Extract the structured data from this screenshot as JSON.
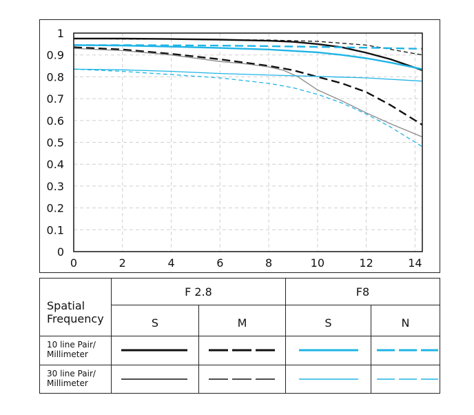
{
  "chart_data": {
    "type": "line",
    "title": "",
    "xlabel": "",
    "ylabel": "",
    "xlim": [
      0,
      14.3
    ],
    "ylim": [
      0,
      1
    ],
    "x_ticks": [
      0,
      2,
      4,
      6,
      8,
      10,
      12,
      14
    ],
    "x_tick_labels": [
      "0",
      "2",
      "4",
      "6",
      "8",
      "10",
      "12",
      "14"
    ],
    "y_ticks": [
      0,
      0.1,
      0.2,
      0.3,
      0.4,
      0.5,
      0.6,
      0.7,
      0.8,
      0.9,
      1
    ],
    "y_tick_labels": [
      "0",
      "0.1",
      "0.2",
      "0.3",
      "0.4",
      "0.5",
      "0.6",
      "0.7",
      "0.8",
      "0.9",
      "1"
    ],
    "grid": true,
    "series": [
      {
        "name": "F 2.8 S 10 line Pair/Millimeter",
        "color": "#111111",
        "dash": "solid",
        "weight": "thick",
        "x": [
          0,
          2,
          4,
          6,
          8,
          9,
          10,
          11,
          12,
          13,
          14.3
        ],
        "y": [
          0.975,
          0.975,
          0.973,
          0.97,
          0.965,
          0.96,
          0.95,
          0.935,
          0.91,
          0.88,
          0.83
        ]
      },
      {
        "name": "F 2.8 M 10 line Pair/Millimeter",
        "color": "#111111",
        "dash": "dashed",
        "weight": "thick",
        "x": [
          0,
          2,
          4,
          6,
          7,
          8,
          9,
          10,
          11,
          12,
          13,
          14.3
        ],
        "y": [
          0.935,
          0.925,
          0.905,
          0.88,
          0.865,
          0.85,
          0.83,
          0.8,
          0.77,
          0.73,
          0.67,
          0.58
        ]
      },
      {
        "name": "F 2.8 S 30 line Pair/Millimeter",
        "color": "#888888",
        "dash": "solid",
        "weight": "thin",
        "x": [
          0,
          2,
          4,
          6,
          7,
          8,
          8.6,
          9.2,
          10,
          11,
          12,
          13,
          14.3
        ],
        "y": [
          0.93,
          0.92,
          0.9,
          0.87,
          0.86,
          0.845,
          0.83,
          0.8,
          0.74,
          0.69,
          0.635,
          0.585,
          0.525
        ]
      },
      {
        "name": "F 2.8 M 30 line Pair/Millimeter",
        "color": "#111111",
        "dash": "dashed",
        "weight": "thin",
        "x": [
          0,
          2,
          4,
          6,
          8,
          10,
          12,
          14.3
        ],
        "y": [
          0.975,
          0.973,
          0.972,
          0.97,
          0.968,
          0.962,
          0.945,
          0.9
        ]
      },
      {
        "name": "F8 S 10 line Pair/Millimeter",
        "color": "#1fb4e6",
        "dash": "solid",
        "weight": "thick",
        "x": [
          0,
          2,
          4,
          6,
          8,
          10,
          11,
          12,
          13,
          14.3
        ],
        "y": [
          0.945,
          0.943,
          0.938,
          0.932,
          0.925,
          0.912,
          0.9,
          0.885,
          0.865,
          0.835
        ]
      },
      {
        "name": "F8 N 10 line Pair/Millimeter",
        "color": "#1fb4e6",
        "dash": "dashed",
        "weight": "thick",
        "x": [
          0,
          2,
          4,
          6,
          8,
          10,
          12,
          14.3
        ],
        "y": [
          0.945,
          0.945,
          0.944,
          0.943,
          0.94,
          0.937,
          0.933,
          0.928
        ]
      },
      {
        "name": "F8 S 30 line Pair/Millimeter",
        "color": "#1fb4e6",
        "dash": "solid",
        "weight": "thin",
        "x": [
          0,
          2,
          4,
          6,
          8,
          10,
          12,
          14.3
        ],
        "y": [
          0.835,
          0.832,
          0.825,
          0.815,
          0.808,
          0.802,
          0.795,
          0.78
        ]
      },
      {
        "name": "F8 N 30 line Pair/Millimeter",
        "color": "#1fb4e6",
        "dash": "dashed",
        "weight": "thin",
        "x": [
          0,
          2,
          4,
          6,
          8,
          9,
          10,
          11,
          12,
          13,
          14.3
        ],
        "y": [
          0.835,
          0.825,
          0.81,
          0.795,
          0.77,
          0.75,
          0.72,
          0.68,
          0.63,
          0.57,
          0.48
        ]
      }
    ]
  },
  "legend": {
    "row_header": "Spatial Frequency",
    "groups": [
      {
        "label": "F 2.8",
        "columns": [
          "S",
          "M"
        ]
      },
      {
        "label": "F8",
        "columns": [
          "S",
          "N"
        ]
      }
    ],
    "rows": [
      {
        "label_line1": "10 line Pair/",
        "label_line2": "Millimeter"
      },
      {
        "label_line1": "30 line Pair/",
        "label_line2": "Millimeter"
      }
    ],
    "colors": {
      "black": "#111111",
      "cyan": "#1fb4e6"
    }
  }
}
